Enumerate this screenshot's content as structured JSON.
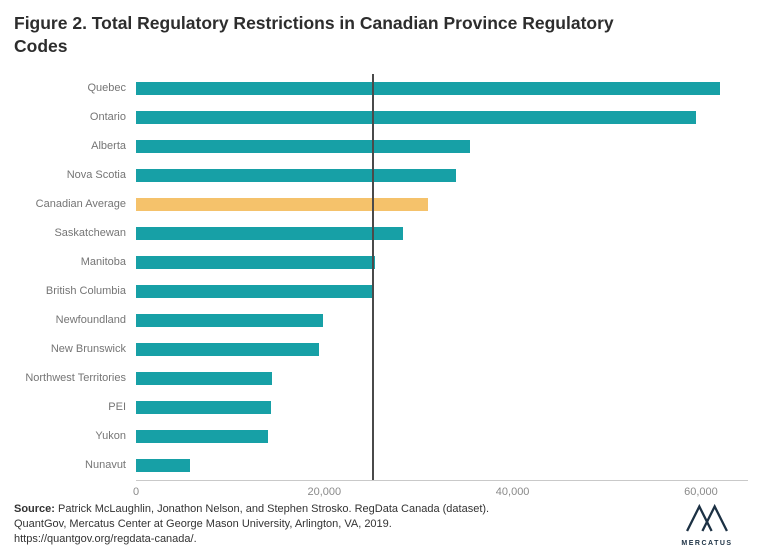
{
  "title": "Figure 2. Total Regulatory Restrictions in Canadian Province Regulatory Codes",
  "chart_data": {
    "type": "bar",
    "orientation": "horizontal",
    "title": "Figure 2. Total Regulatory Restrictions in Canadian Province Regulatory Codes",
    "categories": [
      "Quebec",
      "Ontario",
      "Alberta",
      "Nova Scotia",
      "Canadian Average",
      "Saskatchewan",
      "Manitoba",
      "British Columbia",
      "Newfoundland",
      "New Brunswick",
      "Northwest Territories",
      "PEI",
      "Yukon",
      "Nunavut"
    ],
    "values": [
      62000,
      59500,
      35500,
      34000,
      31000,
      28400,
      25400,
      25100,
      19900,
      19400,
      14400,
      14300,
      14000,
      5700
    ],
    "highlight_category": "Canadian Average",
    "bar_color": "#17a0a6",
    "highlight_color": "#f5c26b",
    "reference_line_x": 25100,
    "xlabel": "",
    "ylabel": "",
    "xlim": [
      0,
      65000
    ],
    "x_ticks": [
      "0",
      "20,000",
      "40,000",
      "60,000"
    ],
    "x_tick_values": [
      0,
      20000,
      40000,
      60000
    ],
    "grid": false,
    "legend_position": "none"
  },
  "footer": {
    "source_label": "Source:",
    "line1": " Patrick McLaughlin, Jonathon Nelson, and Stephen Strosko. RegData Canada (dataset).",
    "line2": "QuantGov, Mercatus Center at George Mason University,  Arlington, VA, 2019.",
    "line3": "https://quantgov.org/regdata-canada/.",
    "logo_text": "MERCATUS"
  }
}
